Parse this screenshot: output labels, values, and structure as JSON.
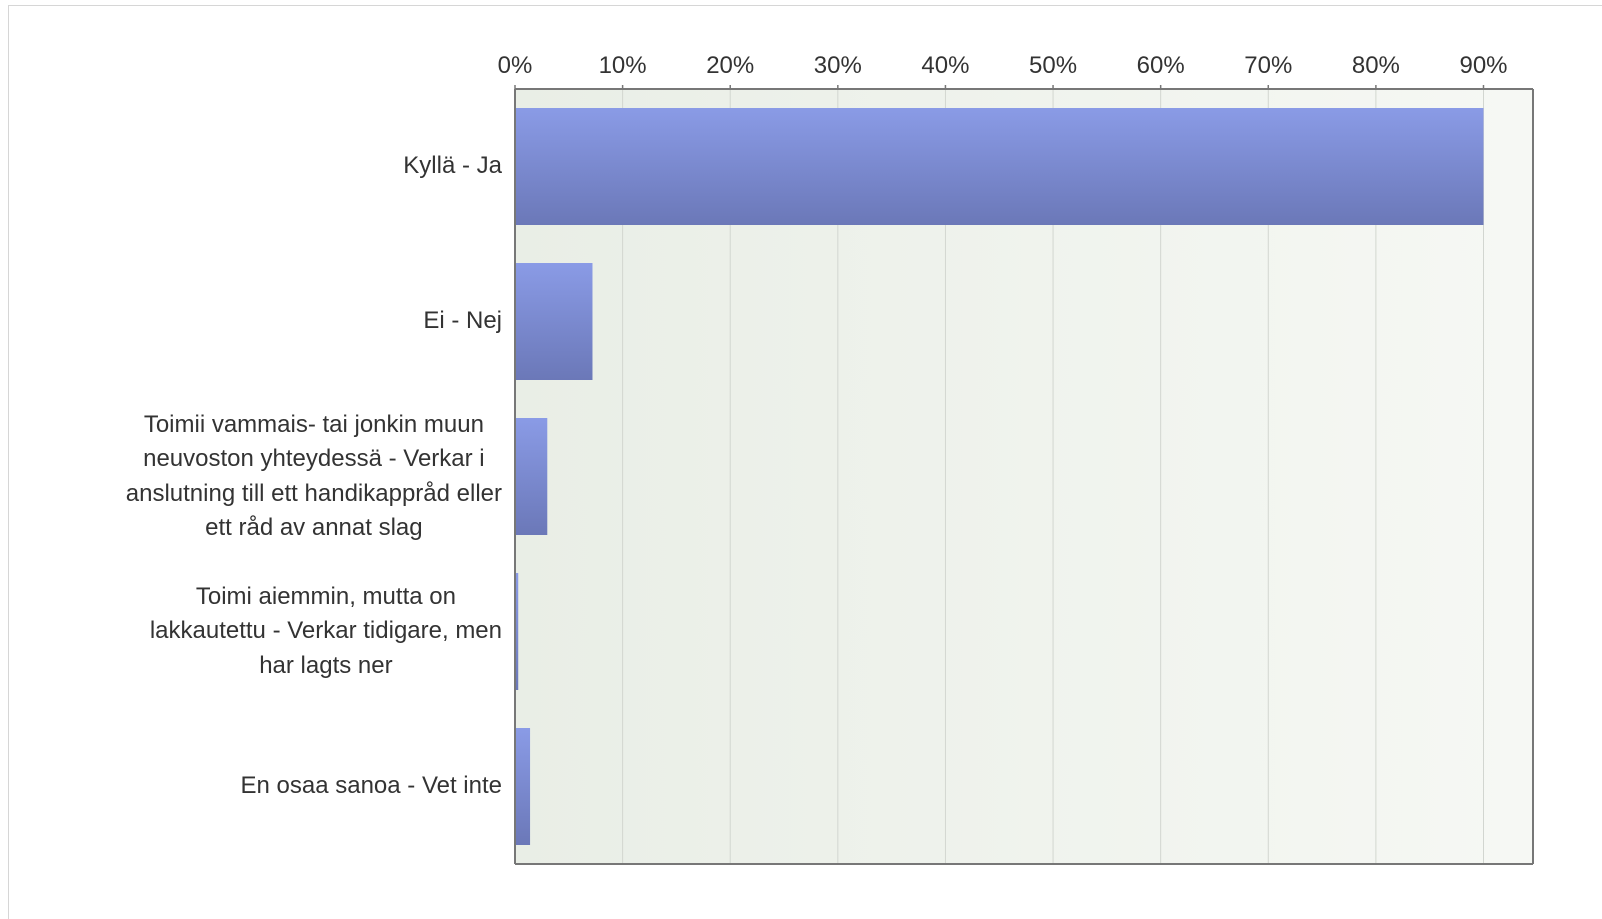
{
  "chart_data": {
    "type": "bar",
    "orientation": "horizontal",
    "categories": [
      "Kyllä - Ja",
      "Ei - Nej",
      "Toimii vammais- tai jonkin muun neuvoston yhteydessä - Verkar i anslutning till ett handikappråd eller ett råd av annat slag",
      "Toimi aiemmin, mutta on lakkautettu - Verkar tidigare, men har lagts ner",
      "En osaa sanoa - Vet inte"
    ],
    "values": [
      90.0,
      7.2,
      3.0,
      0.3,
      1.4
    ],
    "xlim": [
      0,
      94.6
    ],
    "ticks": [
      "0%",
      "10%",
      "20%",
      "30%",
      "40%",
      "50%",
      "60%",
      "70%",
      "80%",
      "90%"
    ],
    "tick_values": [
      0,
      10,
      20,
      30,
      40,
      50,
      60,
      70,
      80,
      90
    ],
    "axis_position": "top",
    "grid": true,
    "title": "",
    "xlabel": "",
    "ylabel": "",
    "colors": {
      "bar_top": "#8a9be6",
      "bar_bottom": "#6b78b8",
      "plot_bg_left": "#e9eee6",
      "plot_bg_right": "#f6f8f4",
      "grid": "#d2d6d0",
      "axis": "#777777"
    }
  },
  "category_label_lines": [
    [
      "Kyllä - Ja"
    ],
    [
      "Ei - Nej"
    ],
    [
      "Toimii vammais- tai jonkin muun",
      "neuvoston yhteydessä - Verkar i",
      "anslutning till ett handikappråd eller",
      "ett råd av annat slag"
    ],
    [
      "Toimi aiemmin, mutta on",
      "lakkautettu - Verkar tidigare, men",
      "har lagts ner"
    ],
    [
      "En osaa sanoa - Vet inte"
    ]
  ]
}
